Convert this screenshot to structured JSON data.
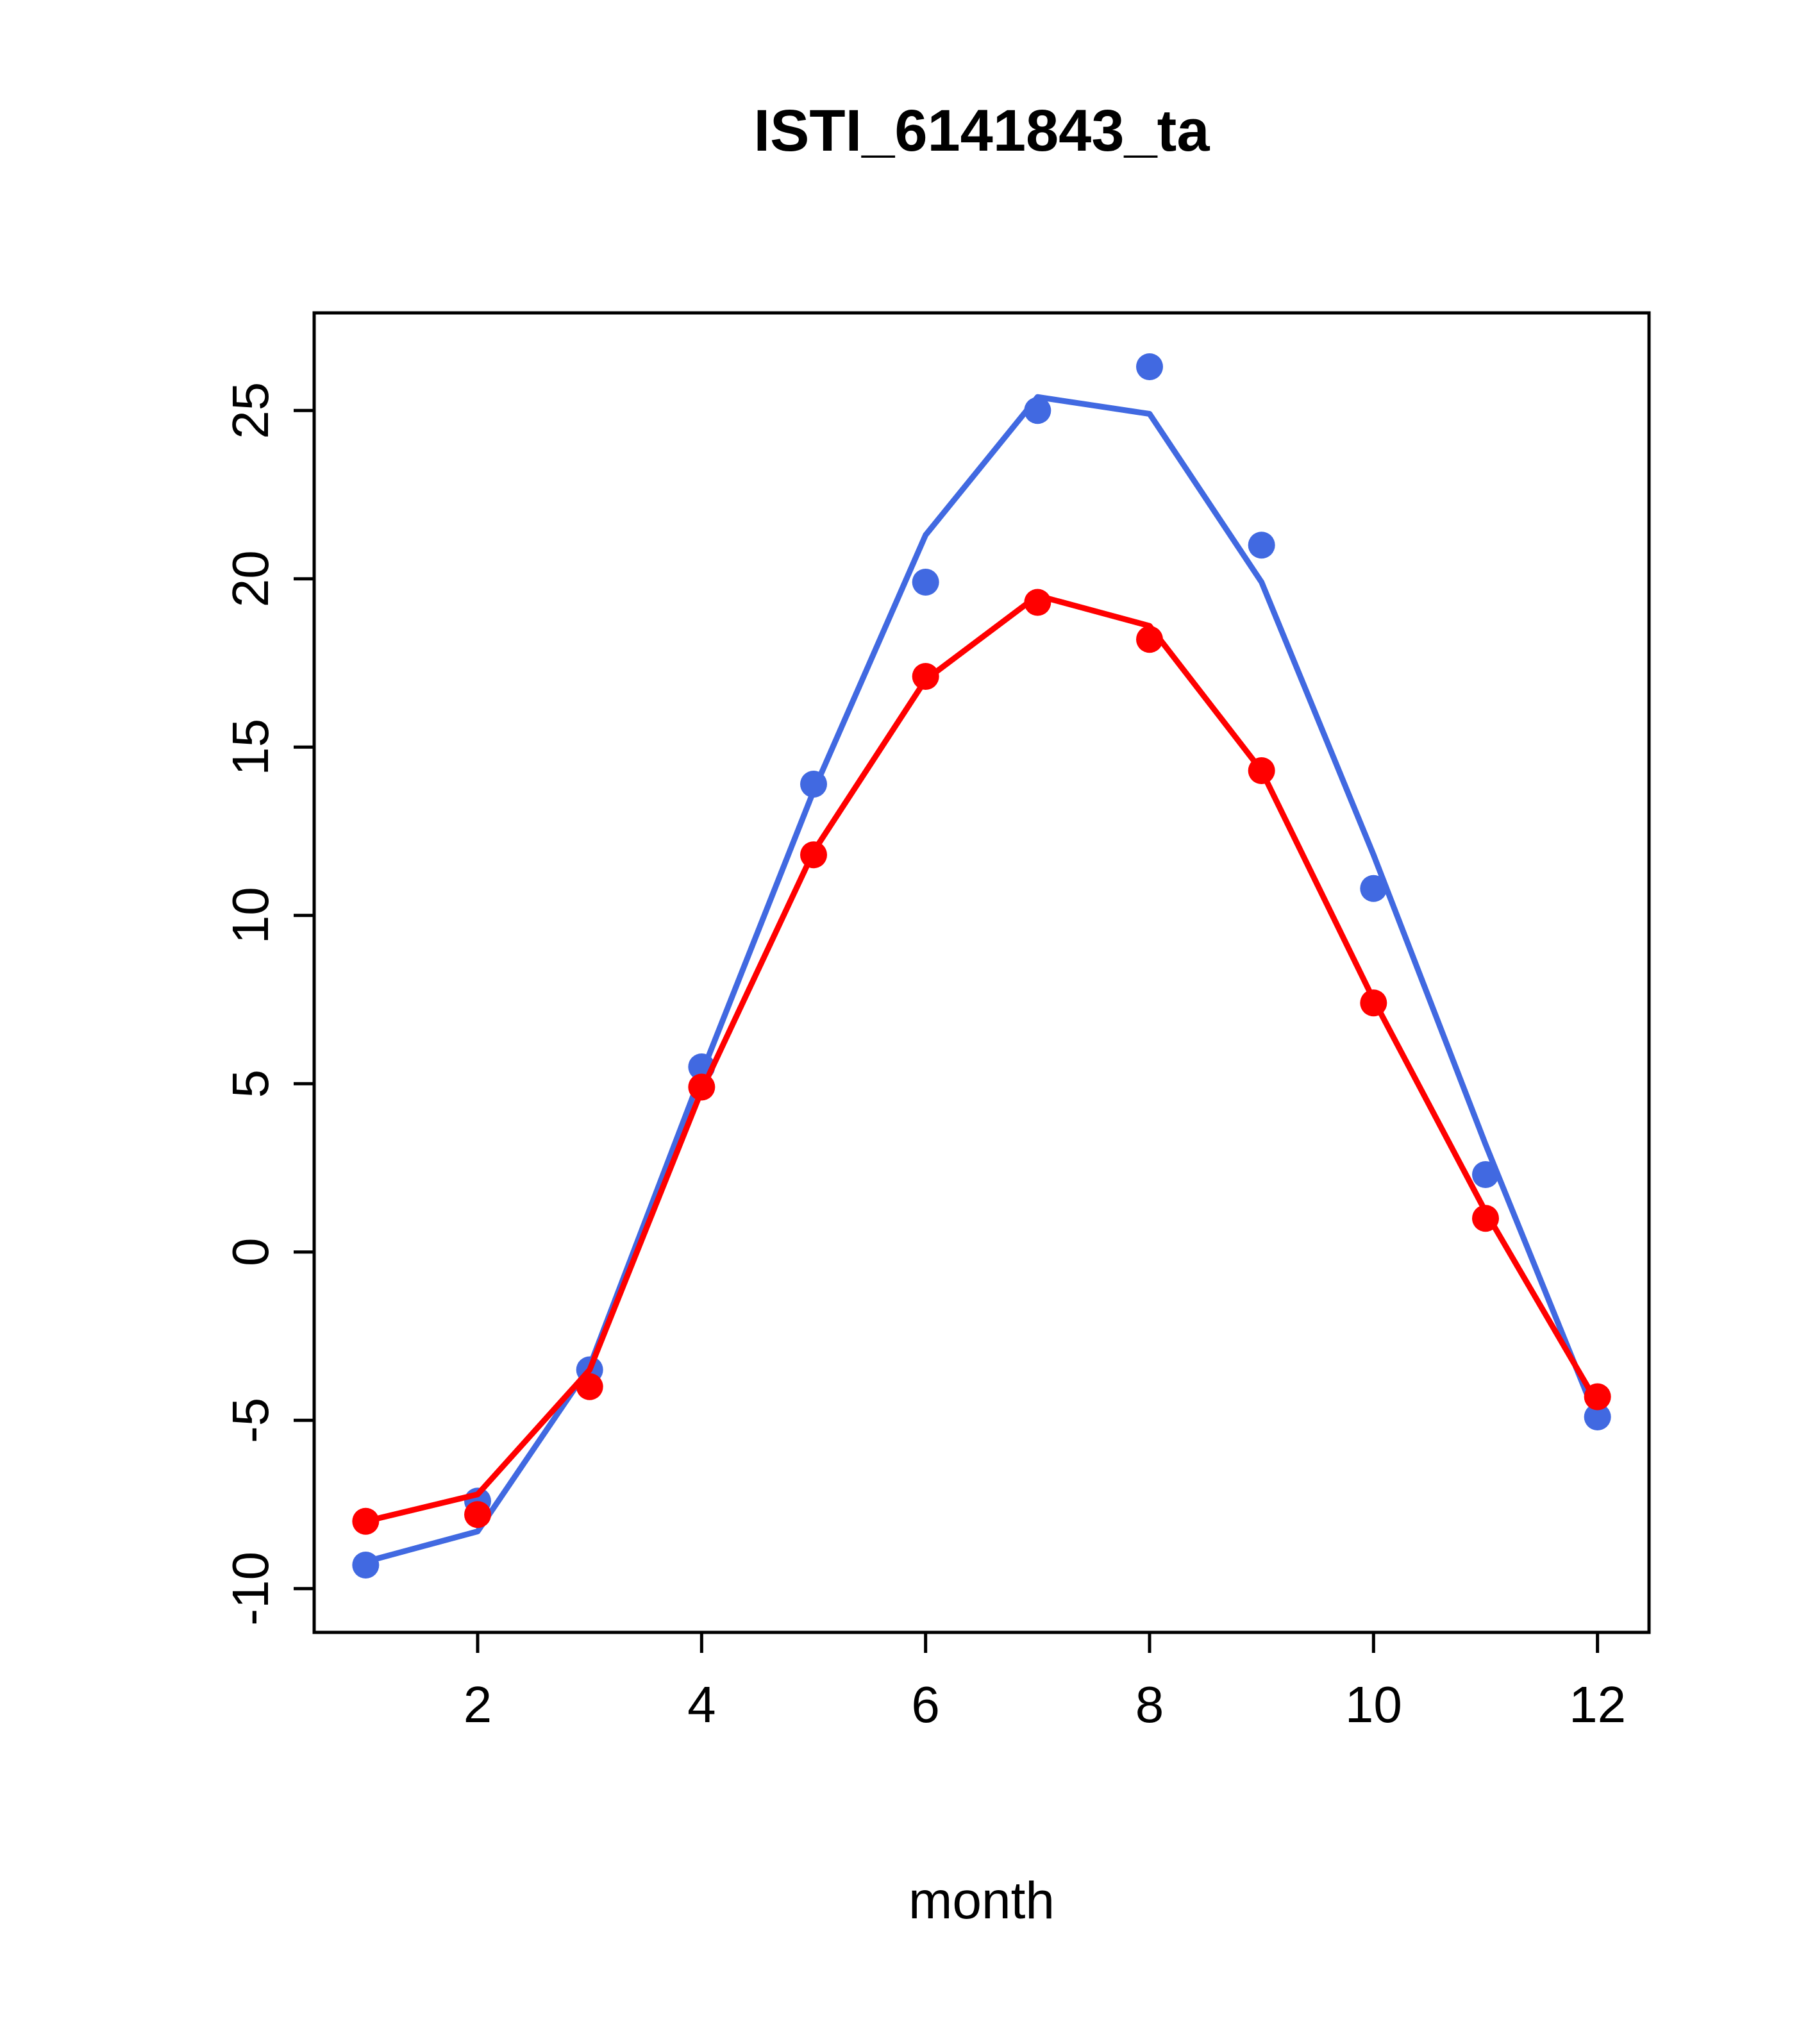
{
  "chart_data": {
    "type": "line",
    "title": "ISTI_6141843_ta",
    "xlabel": "month",
    "ylabel": "",
    "x": [
      1,
      2,
      3,
      4,
      5,
      6,
      7,
      8,
      9,
      10,
      11,
      12
    ],
    "xticks": [
      2,
      4,
      6,
      8,
      10,
      12
    ],
    "yticks": [
      -10,
      -5,
      0,
      5,
      10,
      15,
      20,
      25
    ],
    "xlim": [
      0.54,
      12.46
    ],
    "ylim": [
      -11.3,
      27.9
    ],
    "grid": false,
    "legend": "none",
    "series": [
      {
        "name": "blue-series",
        "color": "#4169E1",
        "line_values": [
          -9.2,
          -8.3,
          -3.4,
          5.3,
          13.7,
          21.3,
          25.4,
          24.9,
          19.9,
          11.8,
          3.2,
          -5.0
        ],
        "point_values": [
          -9.3,
          -7.4,
          -3.5,
          5.5,
          13.9,
          19.9,
          25.0,
          26.3,
          21.0,
          10.8,
          2.3,
          -4.9
        ]
      },
      {
        "name": "red-series",
        "color": "#FF0000",
        "line_values": [
          -8.0,
          -7.2,
          -3.5,
          4.8,
          11.9,
          17.0,
          19.5,
          18.6,
          14.3,
          7.5,
          1.2,
          -4.5
        ],
        "point_values": [
          -8.0,
          -7.8,
          -4.0,
          4.9,
          11.8,
          17.1,
          19.3,
          18.2,
          14.3,
          7.4,
          1.0,
          -4.3
        ]
      }
    ]
  }
}
